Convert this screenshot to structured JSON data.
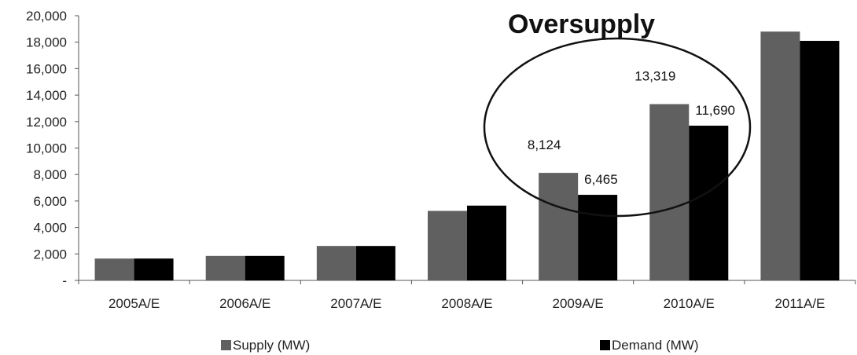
{
  "chart_data": {
    "type": "bar",
    "title": "",
    "xlabel": "",
    "ylabel": "",
    "categories": [
      "2005A/E",
      "2006A/E",
      "2007A/E",
      "2008A/E",
      "2009A/E",
      "2010A/E",
      "2011A/E"
    ],
    "series": [
      {
        "name": "Supply (MW)",
        "color": "#606060",
        "values": [
          1650,
          1850,
          2600,
          5250,
          8124,
          13319,
          18800
        ]
      },
      {
        "name": "Demand (MW)",
        "color": "#000000",
        "values": [
          1650,
          1850,
          2600,
          5650,
          6465,
          11690,
          18100
        ]
      }
    ],
    "ylim": [
      0,
      20000
    ],
    "yticks": [
      0,
      2000,
      4000,
      6000,
      8000,
      10000,
      12000,
      14000,
      16000,
      18000,
      20000
    ],
    "ytick_labels": [
      "-",
      "2,000",
      "4,000",
      "6,000",
      "8,000",
      "10,000",
      "12,000",
      "14,000",
      "16,000",
      "18,000",
      "20,000"
    ],
    "data_labels": [
      {
        "series": 0,
        "index": 4,
        "text": "8,124"
      },
      {
        "series": 1,
        "index": 4,
        "text": "6,465"
      },
      {
        "series": 0,
        "index": 5,
        "text": "13,319"
      },
      {
        "series": 1,
        "index": 5,
        "text": "11,690"
      }
    ],
    "annotation": {
      "text": "Oversupply",
      "shape": "ellipse",
      "encloses": [
        "2009A/E",
        "2010A/E"
      ]
    },
    "legend_position": "bottom",
    "grid": false
  }
}
